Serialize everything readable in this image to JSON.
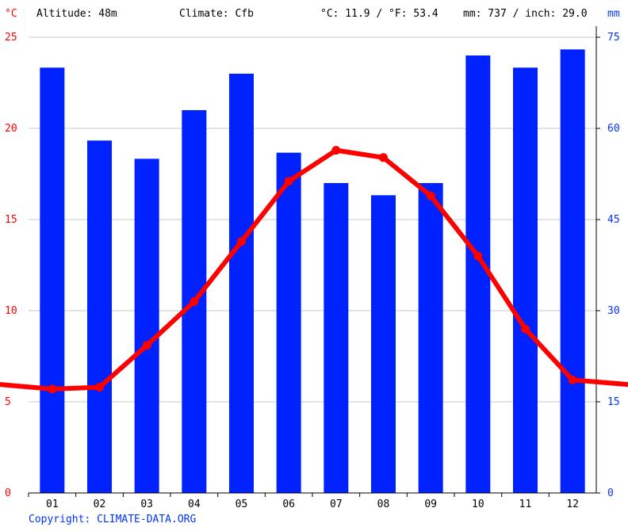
{
  "header": {
    "temp_unit": "°C",
    "altitude": "Altitude: 48m",
    "climate": "Climate: Cfb",
    "temps": "°C: 11.9 / °F: 53.4",
    "precip": "mm: 737 / inch: 29.0",
    "precip_unit": "mm"
  },
  "footer": {
    "copyright": "Copyright: CLIMATE-DATA.ORG"
  },
  "colors": {
    "bar": "#0022ff",
    "line": "#ff0000",
    "grid": "#c8c8c8",
    "left_axis": "#ff0000",
    "right_axis": "#0033ff"
  },
  "chart_data": {
    "type": "bar+line",
    "categories": [
      "01",
      "02",
      "03",
      "04",
      "05",
      "06",
      "07",
      "08",
      "09",
      "10",
      "11",
      "12"
    ],
    "series": [
      {
        "name": "mm",
        "type": "bar",
        "axis": "right",
        "values": [
          70,
          58,
          55,
          63,
          69,
          56,
          51,
          49,
          51,
          72,
          70,
          73
        ]
      },
      {
        "name": "°C",
        "type": "line",
        "axis": "left",
        "values": [
          5.7,
          5.8,
          8.1,
          10.5,
          13.8,
          17.1,
          18.8,
          18.4,
          16.3,
          13.0,
          9.0,
          6.2
        ]
      }
    ],
    "y_left": {
      "label": "°C",
      "range": [
        0,
        25
      ],
      "ticks": [
        0,
        5,
        10,
        15,
        20,
        25
      ]
    },
    "y_right": {
      "label": "mm",
      "range": [
        0,
        75
      ],
      "ticks": [
        0,
        15,
        30,
        45,
        60,
        75
      ]
    },
    "grid": true
  }
}
